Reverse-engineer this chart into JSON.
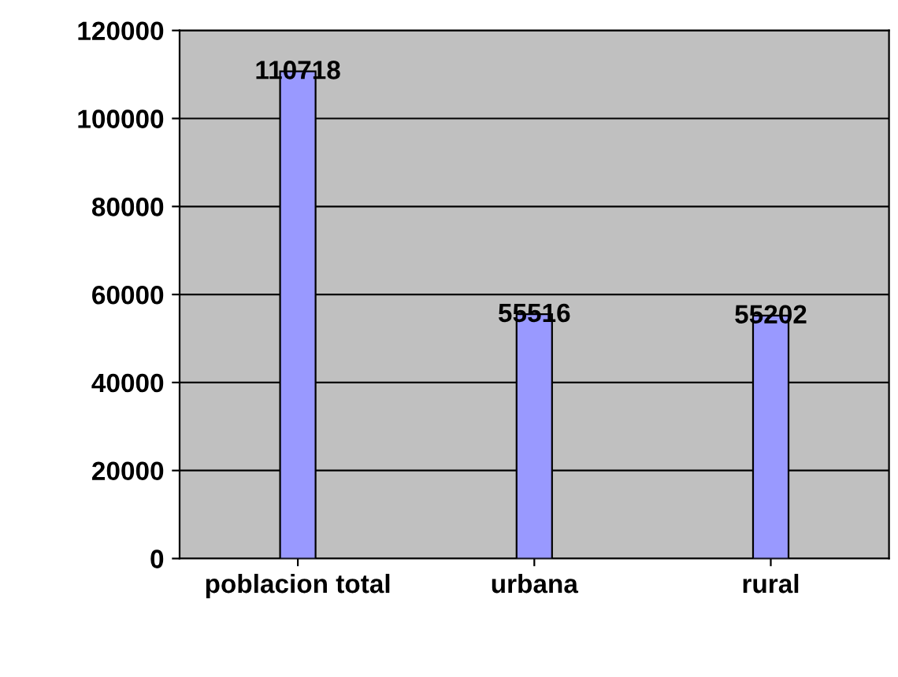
{
  "chart_data": {
    "type": "bar",
    "categories": [
      "poblacion total",
      "urbana",
      "rural"
    ],
    "values": [
      110718,
      55516,
      55202
    ],
    "color": "#9999ff",
    "ylim": [
      0,
      120000
    ],
    "yticks": [
      0,
      20000,
      40000,
      60000,
      80000,
      100000,
      120000
    ],
    "grid": "y",
    "data_labels": true
  }
}
